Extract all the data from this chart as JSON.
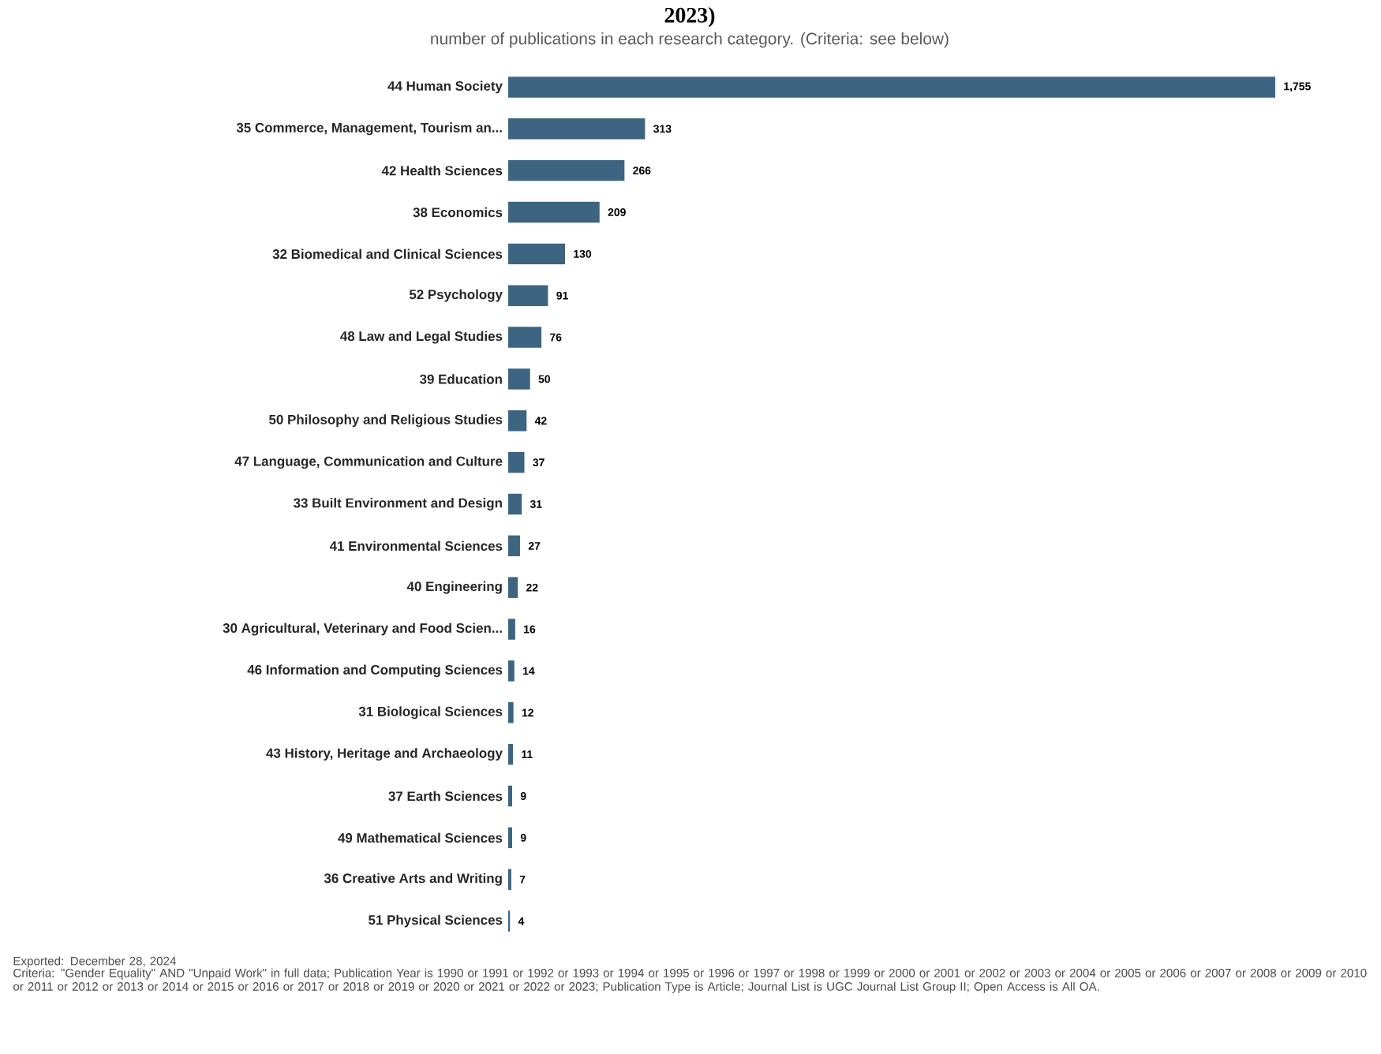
{
  "chart_data": {
    "type": "bar",
    "orientation": "horizontal",
    "title": "2023)",
    "subtitle": "number of publications in each research category. (Criteria: see below)",
    "categories": [
      "44 Human Society",
      "35 Commerce, Management, Tourism an...",
      "42 Health Sciences",
      "38 Economics",
      "32 Biomedical and Clinical Sciences",
      "52 Psychology",
      "48 Law and Legal Studies",
      "39 Education",
      "50 Philosophy and Religious Studies",
      "47 Language, Communication and Culture",
      "33 Built Environment and Design",
      "41 Environmental Sciences",
      "40 Engineering",
      "30 Agricultural, Veterinary and Food Scien...",
      "46 Information and Computing Sciences",
      "31 Biological Sciences",
      "43 History, Heritage and Archaeology",
      "37 Earth Sciences",
      "49 Mathematical Sciences",
      "36 Creative Arts and Writing",
      "51 Physical Sciences"
    ],
    "values": [
      1755,
      313,
      266,
      209,
      130,
      91,
      76,
      50,
      42,
      37,
      31,
      27,
      22,
      16,
      14,
      12,
      11,
      9,
      9,
      7,
      4
    ],
    "value_labels": [
      "1,755",
      "313",
      "266",
      "209",
      "130",
      "91",
      "76",
      "50",
      "42",
      "37",
      "31",
      "27",
      "22",
      "16",
      "14",
      "12",
      "11",
      "9",
      "9",
      "7",
      "4"
    ],
    "color": "#3d6480",
    "annotations": [
      "Exported: December 28, 2024",
      "Criteria: \"Gender Equality\" AND \"Unpaid Work\" in full data; Publication Year is 1990 or 1991 or 1992 or 1993 or 1994 or 1995 or 1996 or 1997 or 1998 or 1999 or 2000 or 2001 or 2002 or 2003 or 2004 or 2005 or 2006 or 2007 or 2008 or 2009 or 2010 or 2011 or 2012 or 2013 or 2014 or 2015 or 2016 or 2017 or 2018 or 2019 or 2020 or 2021 or 2022 or 2023; Publication Type is Article; Journal List is UGC Journal List Group II; Open Access is All OA."
    ]
  }
}
